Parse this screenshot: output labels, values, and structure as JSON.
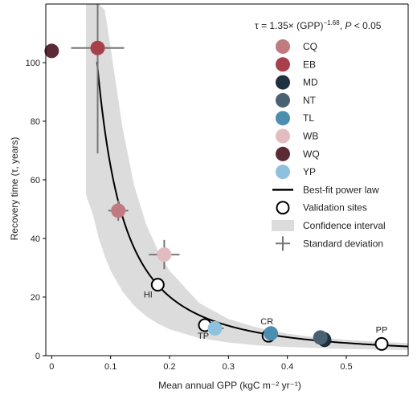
{
  "chart_data": {
    "type": "scatter",
    "title": "",
    "formula": {
      "prefix": "τ = 1.35× (GPP)",
      "exponent": "−1.68",
      "suffix": ", ",
      "p_label": "P",
      "p_value": " < 0.05"
    },
    "xlabel": "Mean annual GPP (kgC m⁻² yr⁻¹)",
    "ylabel": "Recovery time (τ, years)",
    "xlim": [
      -0.01,
      0.605
    ],
    "ylim": [
      0,
      120
    ],
    "x_ticks": [
      0,
      0.1,
      0.2,
      0.3,
      0.4,
      0.5
    ],
    "x_tick_labels": [
      "0",
      "0.1",
      "0.2",
      "0.3",
      "0.4",
      "0.5"
    ],
    "y_ticks": [
      0,
      20,
      40,
      60,
      80,
      100
    ],
    "y_tick_labels": [
      "0",
      "20",
      "40",
      "60",
      "80",
      "100"
    ],
    "grid": false,
    "legend_position": "top-right",
    "fit": {
      "a": 1.35,
      "b": -1.68,
      "x_range": [
        0.077,
        0.605
      ],
      "color": "#000000"
    },
    "confidence_band": [
      {
        "x": 0.058,
        "lo": 55,
        "hi": 120
      },
      {
        "x": 0.07,
        "lo": 48,
        "hi": 120
      },
      {
        "x": 0.08,
        "lo": 40,
        "hi": 120
      },
      {
        "x": 0.09,
        "lo": 34,
        "hi": 118
      },
      {
        "x": 0.1,
        "lo": 29,
        "hi": 105
      },
      {
        "x": 0.12,
        "lo": 22,
        "hi": 78
      },
      {
        "x": 0.14,
        "lo": 17,
        "hi": 58
      },
      {
        "x": 0.16,
        "lo": 13.5,
        "hi": 45
      },
      {
        "x": 0.18,
        "lo": 11,
        "hi": 36
      },
      {
        "x": 0.2,
        "lo": 9,
        "hi": 29
      },
      {
        "x": 0.25,
        "lo": 6,
        "hi": 18
      },
      {
        "x": 0.3,
        "lo": 4.5,
        "hi": 12.5
      },
      {
        "x": 0.35,
        "lo": 3.5,
        "hi": 9.5
      },
      {
        "x": 0.4,
        "lo": 3,
        "hi": 7.5
      },
      {
        "x": 0.45,
        "lo": 2.6,
        "hi": 6.2
      },
      {
        "x": 0.5,
        "lo": 2.3,
        "hi": 5.4
      },
      {
        "x": 0.55,
        "lo": 2.1,
        "hi": 4.8
      },
      {
        "x": 0.605,
        "lo": 1.9,
        "hi": 4.3
      }
    ],
    "band_color": "#dcdcdc",
    "series": [
      {
        "name": "CQ",
        "color": "#c07a80",
        "points": [
          {
            "x": 0.113,
            "y": 49.5,
            "xerr": 0.017,
            "yerr": 3.5
          }
        ]
      },
      {
        "name": "EB",
        "color": "#a8404c",
        "points": [
          {
            "x": 0.078,
            "y": 105,
            "xerr": 0.045,
            "yerr": 36
          }
        ]
      },
      {
        "name": "MD",
        "color": "#1f3040",
        "points": [
          {
            "x": 0.462,
            "y": 5.6,
            "xerr": 0.005,
            "yerr": 0.5
          }
        ]
      },
      {
        "name": "NT",
        "color": "#4a6172",
        "points": [
          {
            "x": 0.456,
            "y": 6.2,
            "xerr": 0.005,
            "yerr": 0.5
          }
        ]
      },
      {
        "name": "TL",
        "color": "#4b8eb0",
        "points": [
          {
            "x": 0.372,
            "y": 7.6,
            "xerr": 0.012,
            "yerr": 1.0
          }
        ]
      },
      {
        "name": "WB",
        "color": "#e2bcc0",
        "points": [
          {
            "x": 0.191,
            "y": 34.5,
            "xerr": 0.026,
            "yerr": 5
          }
        ]
      },
      {
        "name": "WQ",
        "color": "#5c2a35",
        "points": [
          {
            "x": 0.0,
            "y": 104,
            "xerr": 0,
            "yerr": 0
          }
        ]
      },
      {
        "name": "YP",
        "color": "#8fc1df",
        "points": [
          {
            "x": 0.277,
            "y": 9.3,
            "xerr": 0.015,
            "yerr": 1.0
          }
        ]
      }
    ],
    "validation_sites": [
      {
        "label": "HI",
        "x": 0.18,
        "y": 24.2
      },
      {
        "label": "TP",
        "x": 0.26,
        "y": 10.4
      },
      {
        "label": "CR",
        "x": 0.368,
        "y": 6.8
      },
      {
        "label": "",
        "x": 0.463,
        "y": 5.3
      },
      {
        "label": "PP",
        "x": 0.56,
        "y": 4.0
      }
    ],
    "legend_extra": {
      "fit_label": "Best-fit power law",
      "validation_label": "Validation sites",
      "ci_label": "Confidence interval",
      "sd_label": "Standard deviation"
    }
  }
}
